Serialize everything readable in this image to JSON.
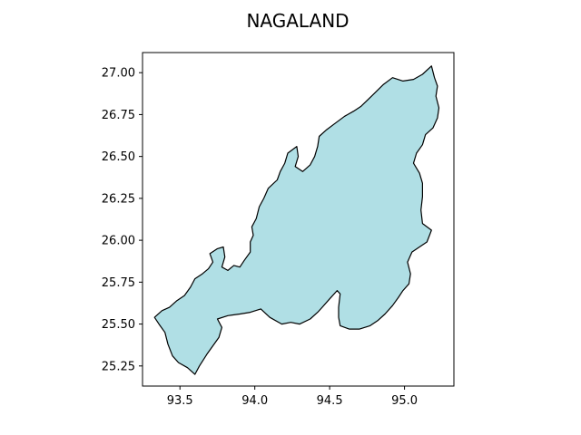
{
  "title": "NAGALAND",
  "map": {
    "region_fill": "#b0dfe5",
    "region_stroke": "#000000",
    "x_range": [
      93.25,
      95.33
    ],
    "y_range": [
      25.13,
      27.12
    ],
    "x_ticks": [
      "93.5",
      "94.0",
      "94.5",
      "95.0"
    ],
    "x_tick_values": [
      93.5,
      94.0,
      94.5,
      95.0
    ],
    "y_ticks": [
      "27.00",
      "26.75",
      "26.50",
      "26.25",
      "26.00",
      "25.75",
      "25.50",
      "25.25"
    ],
    "y_tick_values": [
      27.0,
      26.75,
      26.5,
      26.25,
      26.0,
      25.75,
      25.5,
      25.25
    ],
    "boundary": [
      [
        93.33,
        25.54
      ],
      [
        93.38,
        25.58
      ],
      [
        93.43,
        25.6
      ],
      [
        93.48,
        25.64
      ],
      [
        93.53,
        25.67
      ],
      [
        93.57,
        25.72
      ],
      [
        93.6,
        25.77
      ],
      [
        93.65,
        25.8
      ],
      [
        93.69,
        25.83
      ],
      [
        93.72,
        25.87
      ],
      [
        93.7,
        25.92
      ],
      [
        93.75,
        25.95
      ],
      [
        93.79,
        25.96
      ],
      [
        93.8,
        25.9
      ],
      [
        93.78,
        25.84
      ],
      [
        93.82,
        25.82
      ],
      [
        93.86,
        25.85
      ],
      [
        93.9,
        25.84
      ],
      [
        93.93,
        25.88
      ],
      [
        93.97,
        25.93
      ],
      [
        93.97,
        25.99
      ],
      [
        93.99,
        26.03
      ],
      [
        93.98,
        26.08
      ],
      [
        94.01,
        26.13
      ],
      [
        94.03,
        26.2
      ],
      [
        94.06,
        26.25
      ],
      [
        94.09,
        26.31
      ],
      [
        94.15,
        26.36
      ],
      [
        94.17,
        26.41
      ],
      [
        94.2,
        26.46
      ],
      [
        94.22,
        26.52
      ],
      [
        94.28,
        26.56
      ],
      [
        94.29,
        26.5
      ],
      [
        94.27,
        26.44
      ],
      [
        94.32,
        26.41
      ],
      [
        94.37,
        26.45
      ],
      [
        94.4,
        26.5
      ],
      [
        94.42,
        26.56
      ],
      [
        94.43,
        26.62
      ],
      [
        94.48,
        26.66
      ],
      [
        94.54,
        26.7
      ],
      [
        94.6,
        26.74
      ],
      [
        94.66,
        26.77
      ],
      [
        94.71,
        26.8
      ],
      [
        94.78,
        26.86
      ],
      [
        94.86,
        26.93
      ],
      [
        94.92,
        26.97
      ],
      [
        94.99,
        26.95
      ],
      [
        95.06,
        26.96
      ],
      [
        95.12,
        26.99
      ],
      [
        95.18,
        27.04
      ],
      [
        95.2,
        26.97
      ],
      [
        95.22,
        26.92
      ],
      [
        95.21,
        26.86
      ],
      [
        95.23,
        26.79
      ],
      [
        95.22,
        26.73
      ],
      [
        95.19,
        26.67
      ],
      [
        95.14,
        26.63
      ],
      [
        95.12,
        26.57
      ],
      [
        95.08,
        26.52
      ],
      [
        95.06,
        26.46
      ],
      [
        95.1,
        26.4
      ],
      [
        95.12,
        26.34
      ],
      [
        95.12,
        26.26
      ],
      [
        95.11,
        26.18
      ],
      [
        95.12,
        26.1
      ],
      [
        95.18,
        26.06
      ],
      [
        95.15,
        25.99
      ],
      [
        95.1,
        25.96
      ],
      [
        95.05,
        25.93
      ],
      [
        95.02,
        25.87
      ],
      [
        95.04,
        25.8
      ],
      [
        95.03,
        25.74
      ],
      [
        94.99,
        25.7
      ],
      [
        94.96,
        25.66
      ],
      [
        94.92,
        25.61
      ],
      [
        94.87,
        25.56
      ],
      [
        94.82,
        25.52
      ],
      [
        94.77,
        25.49
      ],
      [
        94.7,
        25.47
      ],
      [
        94.63,
        25.47
      ],
      [
        94.57,
        25.49
      ],
      [
        94.56,
        25.54
      ],
      [
        94.56,
        25.6
      ],
      [
        94.57,
        25.68
      ],
      [
        94.55,
        25.7
      ],
      [
        94.5,
        25.65
      ],
      [
        94.45,
        25.6
      ],
      [
        94.42,
        25.57
      ],
      [
        94.37,
        25.53
      ],
      [
        94.3,
        25.5
      ],
      [
        94.24,
        25.51
      ],
      [
        94.18,
        25.5
      ],
      [
        94.1,
        25.54
      ],
      [
        94.04,
        25.59
      ],
      [
        93.97,
        25.57
      ],
      [
        93.9,
        25.56
      ],
      [
        93.82,
        25.55
      ],
      [
        93.75,
        25.53
      ],
      [
        93.78,
        25.48
      ],
      [
        93.76,
        25.42
      ],
      [
        93.72,
        25.37
      ],
      [
        93.68,
        25.32
      ],
      [
        93.63,
        25.25
      ],
      [
        93.6,
        25.2
      ],
      [
        93.55,
        25.24
      ],
      [
        93.49,
        25.27
      ],
      [
        93.45,
        25.31
      ],
      [
        93.42,
        25.38
      ],
      [
        93.4,
        25.45
      ],
      [
        93.36,
        25.5
      ],
      [
        93.33,
        25.54
      ]
    ]
  }
}
